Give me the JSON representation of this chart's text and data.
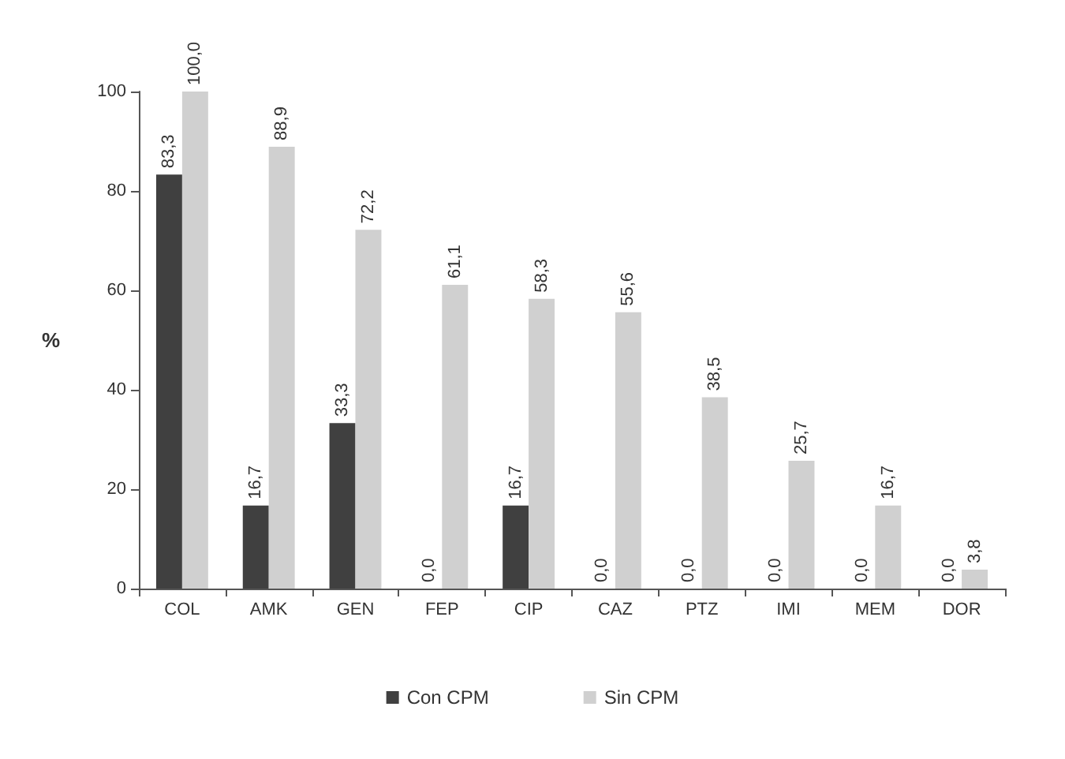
{
  "chart_data": {
    "type": "bar",
    "ylabel": "%",
    "categories": [
      "COL",
      "AMK",
      "GEN",
      "FEP",
      "CIP",
      "CAZ",
      "PTZ",
      "IMI",
      "MEM",
      "DOR"
    ],
    "series": [
      {
        "name": "Con CPM",
        "color": "#404040",
        "values": [
          83.3,
          16.7,
          33.3,
          0,
          16.7,
          0,
          0,
          0,
          0,
          0
        ],
        "value_labels": [
          "83,3",
          "16,7",
          "33,3",
          "0,0",
          "16,7",
          "0,0",
          "0,0",
          "0,0",
          "0,0",
          "0,0"
        ]
      },
      {
        "name": "Sin CPM",
        "color": "#d0d0d0",
        "values": [
          100,
          88.9,
          72.2,
          61.1,
          58.3,
          55.6,
          38.5,
          25.7,
          16.7,
          3.8
        ],
        "value_labels": [
          "100,0",
          "88,9",
          "72,2",
          "61,1",
          "58,3",
          "55,6",
          "38,5",
          "25,7",
          "16,7",
          "3,8"
        ]
      }
    ],
    "ylim": [
      0,
      100
    ],
    "yticks": [
      0,
      20,
      40,
      60,
      80,
      100
    ],
    "grid": false,
    "legend": "bottom"
  }
}
